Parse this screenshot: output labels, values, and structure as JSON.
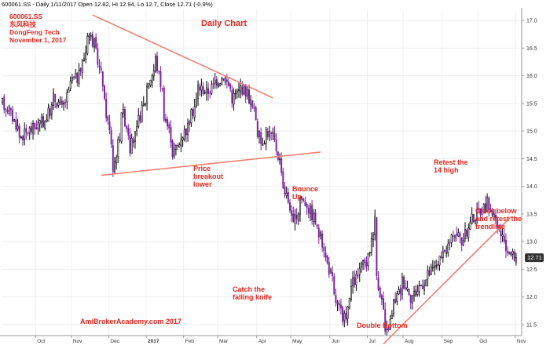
{
  "header": {
    "quote_line": "600061.SS - Daily 1/11/2017 Open 12.82, Hi 12.94, Lo 12.7, Close 12.71 (-0.9%)"
  },
  "info_block": {
    "symbol": "600061.SS",
    "chinese_name": "东风科技",
    "company": "DongFeng Tech",
    "date": "November 1, 2017"
  },
  "title": "Daily Chart",
  "watermark": "AmiBrokerAcademy.com  2017",
  "annotations": [
    {
      "id": "price-breakout",
      "text": "Price\nbreakout\nlower"
    },
    {
      "id": "bounce-up",
      "text": "Bounce\nUp"
    },
    {
      "id": "retest-high",
      "text": "Retest the\n14 high"
    },
    {
      "id": "close-below",
      "text": "Close below\nand retest the\ntrendline"
    },
    {
      "id": "catch-knife",
      "text": "Catch the\nfalling knife"
    },
    {
      "id": "double-bottom",
      "text": "Double Bottom"
    }
  ],
  "colors": {
    "bull": "#000000",
    "bear": "#7b1fa2",
    "trendline": "#f08070",
    "annotation": "#e8261f",
    "last_price_bg": "#333333"
  },
  "chart_data": {
    "type": "candlestick",
    "ylim": [
      11.3,
      17.2
    ],
    "y_ticks": [
      11.5,
      12.0,
      12.5,
      13.0,
      13.5,
      14.0,
      14.5,
      15.0,
      15.5,
      16.0,
      16.5,
      17.0
    ],
    "x_tick_labels": [
      "Oct",
      "Nov",
      "Dec",
      "2017",
      "Feb",
      "Mar",
      "Apr",
      "May",
      "Jun",
      "Jul",
      "Aug",
      "Sep",
      "Oct",
      "Nov"
    ],
    "last_price": 12.71,
    "trendlines": [
      {
        "name": "upper triangle",
        "points": [
          [
            "2016-11-17",
            17.1
          ],
          [
            "2017-04-14",
            15.6
          ]
        ]
      },
      {
        "name": "lower triangle",
        "points": [
          [
            "2016-11-24",
            14.2
          ],
          [
            "2017-05-24",
            14.62
          ]
        ]
      },
      {
        "name": "rising support",
        "points": [
          [
            "2017-07-14",
            11.15
          ],
          [
            "2017-10-27",
            13.45
          ]
        ]
      }
    ],
    "anchors": [
      [
        "2016-09-05",
        15.5
      ],
      [
        "2016-09-12",
        15.3
      ],
      [
        "2016-09-19",
        14.9
      ],
      [
        "2016-09-26",
        15.0
      ],
      [
        "2016-10-10",
        15.2
      ],
      [
        "2016-10-17",
        15.6
      ],
      [
        "2016-10-24",
        15.4
      ],
      [
        "2016-10-31",
        15.9
      ],
      [
        "2016-11-07",
        16.0
      ],
      [
        "2016-11-14",
        16.8
      ],
      [
        "2016-11-21",
        16.4
      ],
      [
        "2016-11-28",
        15.5
      ],
      [
        "2016-12-05",
        14.3
      ],
      [
        "2016-12-12",
        15.4
      ],
      [
        "2016-12-19",
        14.7
      ],
      [
        "2016-12-26",
        15.2
      ],
      [
        "2017-01-03",
        15.9
      ],
      [
        "2017-01-09",
        16.3
      ],
      [
        "2017-01-16",
        15.3
      ],
      [
        "2017-01-23",
        14.6
      ],
      [
        "2017-02-06",
        15.2
      ],
      [
        "2017-02-13",
        15.8
      ],
      [
        "2017-02-20",
        15.7
      ],
      [
        "2017-02-27",
        15.9
      ],
      [
        "2017-03-06",
        16.0
      ],
      [
        "2017-03-13",
        15.6
      ],
      [
        "2017-03-20",
        15.8
      ],
      [
        "2017-03-27",
        15.6
      ],
      [
        "2017-04-05",
        14.8
      ],
      [
        "2017-04-10",
        15.0
      ],
      [
        "2017-04-17",
        14.8
      ],
      [
        "2017-04-24",
        14.0
      ],
      [
        "2017-05-02",
        13.3
      ],
      [
        "2017-05-08",
        13.8
      ],
      [
        "2017-05-15",
        13.6
      ],
      [
        "2017-05-22",
        13.2
      ],
      [
        "2017-05-29",
        12.7
      ],
      [
        "2017-06-05",
        12.0
      ],
      [
        "2017-06-12",
        11.5
      ],
      [
        "2017-06-19",
        12.2
      ],
      [
        "2017-06-26",
        12.5
      ],
      [
        "2017-07-03",
        12.7
      ],
      [
        "2017-07-07",
        13.4
      ],
      [
        "2017-07-10",
        12.4
      ],
      [
        "2017-07-17",
        11.3
      ],
      [
        "2017-07-24",
        11.9
      ],
      [
        "2017-07-31",
        12.3
      ],
      [
        "2017-08-07",
        12.0
      ],
      [
        "2017-08-14",
        12.2
      ],
      [
        "2017-08-21",
        12.4
      ],
      [
        "2017-08-28",
        12.6
      ],
      [
        "2017-09-04",
        12.8
      ],
      [
        "2017-09-11",
        13.2
      ],
      [
        "2017-09-18",
        13.0
      ],
      [
        "2017-09-25",
        13.4
      ],
      [
        "2017-10-09",
        13.7
      ],
      [
        "2017-10-16",
        13.3
      ],
      [
        "2017-10-23",
        12.9
      ],
      [
        "2017-10-27",
        12.8
      ],
      [
        "2017-11-01",
        12.71
      ]
    ]
  }
}
